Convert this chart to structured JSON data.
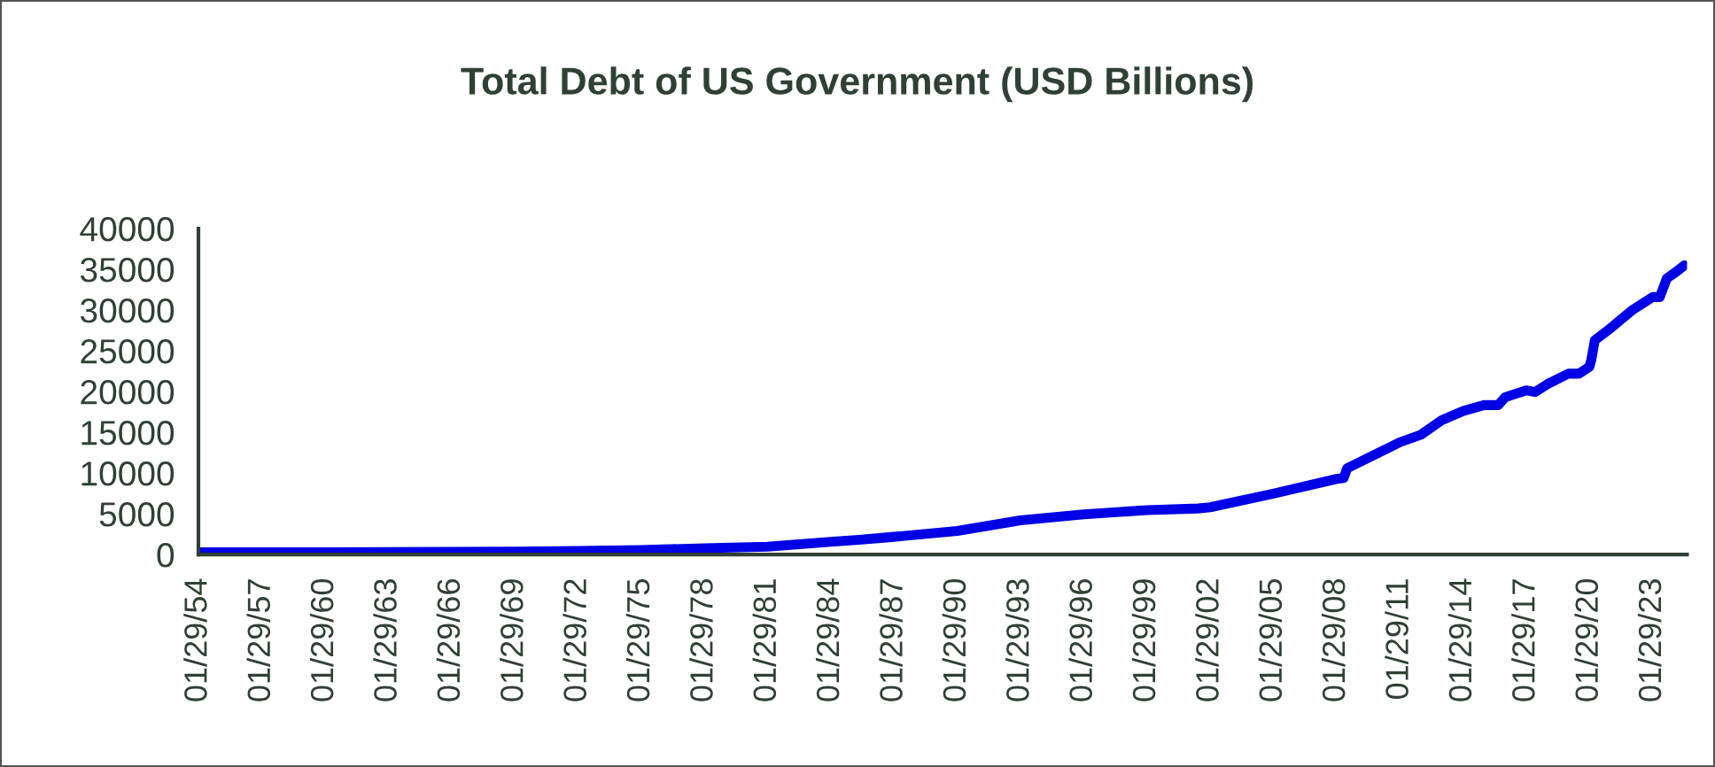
{
  "chart_data": {
    "type": "line",
    "title": "Total Debt of US Government (USD Billions)",
    "x": [
      "1954-01-29",
      "1957-01-29",
      "1960-01-29",
      "1963-01-29",
      "1966-01-29",
      "1969-01-29",
      "1972-01-29",
      "1975-01-29",
      "1978-01-29",
      "1981-01-29",
      "1984-01-29",
      "1985-06-01",
      "1987-01-29",
      "1990-01-29",
      "1993-01-29",
      "1996-01-29",
      "1999-01-29",
      "2001-07-01",
      "2002-01-29",
      "2005-01-29",
      "2008-01-29",
      "2008-06-01",
      "2008-08-01",
      "2011-01-29",
      "2012-01-29",
      "2013-01-29",
      "2014-01-29",
      "2015-01-29",
      "2015-10-01",
      "2016-01-29",
      "2017-01-29",
      "2017-07-01",
      "2018-01-29",
      "2019-01-29",
      "2019-08-01",
      "2020-01-29",
      "2020-03-01",
      "2020-05-01",
      "2021-01-29",
      "2022-01-29",
      "2023-01-29",
      "2023-06-01",
      "2023-10-01",
      "2024-04-01",
      "2024-08-01"
    ],
    "series": [
      {
        "color": "#0000e6",
        "values": [
          270,
          275,
          290,
          305,
          320,
          360,
          430,
          540,
          780,
          960,
          1570,
          1800,
          2175,
          2900,
          4200,
          4930,
          5440,
          5650,
          5800,
          7470,
          9280,
          9400,
          10590,
          13775,
          14700,
          16500,
          17600,
          18340,
          18340,
          19300,
          20150,
          19940,
          20900,
          22200,
          22200,
          23050,
          23900,
          26300,
          27770,
          29940,
          31600,
          31600,
          33900,
          34800,
          35500
        ]
      }
    ],
    "xlim": [
      "1954-01-29",
      "2024-09-15"
    ],
    "xticks": [
      {
        "value": "1954-01-29",
        "label": "01/29/54"
      },
      {
        "value": "1957-01-29",
        "label": "01/29/57"
      },
      {
        "value": "1960-01-29",
        "label": "01/29/60"
      },
      {
        "value": "1963-01-29",
        "label": "01/29/63"
      },
      {
        "value": "1966-01-29",
        "label": "01/29/66"
      },
      {
        "value": "1969-01-29",
        "label": "01/29/69"
      },
      {
        "value": "1972-01-29",
        "label": "01/29/72"
      },
      {
        "value": "1975-01-29",
        "label": "01/29/75"
      },
      {
        "value": "1978-01-29",
        "label": "01/29/78"
      },
      {
        "value": "1981-01-29",
        "label": "01/29/81"
      },
      {
        "value": "1984-01-29",
        "label": "01/29/84"
      },
      {
        "value": "1987-01-29",
        "label": "01/29/87"
      },
      {
        "value": "1990-01-29",
        "label": "01/29/90"
      },
      {
        "value": "1993-01-29",
        "label": "01/29/93"
      },
      {
        "value": "1996-01-29",
        "label": "01/29/96"
      },
      {
        "value": "1999-01-29",
        "label": "01/29/99"
      },
      {
        "value": "2002-01-29",
        "label": "01/29/02"
      },
      {
        "value": "2005-01-29",
        "label": "01/29/05"
      },
      {
        "value": "2008-01-29",
        "label": "01/29/08"
      },
      {
        "value": "2011-01-29",
        "label": "01/29/11"
      },
      {
        "value": "2014-01-29",
        "label": "01/29/14"
      },
      {
        "value": "2017-01-29",
        "label": "01/29/17"
      },
      {
        "value": "2020-01-29",
        "label": "01/29/20"
      },
      {
        "value": "2023-01-29",
        "label": "01/29/23"
      }
    ],
    "ylim": [
      0,
      40000
    ],
    "yticks": [
      0,
      5000,
      10000,
      15000,
      20000,
      25000,
      30000,
      35000,
      40000
    ],
    "grid": false,
    "legend": false,
    "marker": "none",
    "line_style": "solid"
  }
}
